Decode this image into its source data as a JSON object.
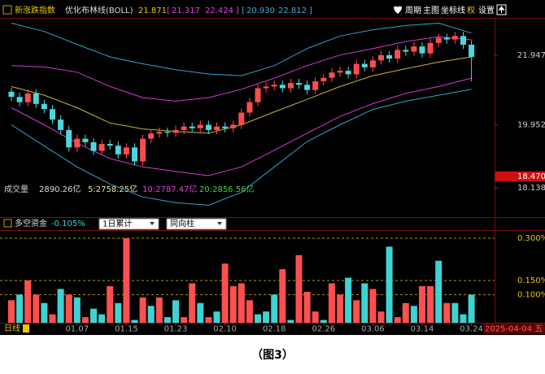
{
  "header": {
    "indicator": "新涨跌指数",
    "study": "优化布林线(BOLL)",
    "mid": "21.871",
    "inner_low": "21.317",
    "inner_high": "22.424",
    "outer_low": "20.930",
    "outer_high": "22.812",
    "menu": [
      "周期",
      "主图",
      "坐标线",
      "权",
      "设置"
    ]
  },
  "volume_row": {
    "label": "成交量",
    "total": "2890.26亿",
    "ma5": "5:2758.25亿",
    "ma10": "10:2787.47亿",
    "ma20": "20:2856.56亿"
  },
  "fund_panel": {
    "label": "多空资金",
    "value": "-0.105%",
    "select1": "1日累计",
    "select2": "同向柱"
  },
  "footer": {
    "period": "日线",
    "date": "2025-04-04 五"
  },
  "caption": "（图3）",
  "chart_data": [
    {
      "type": "candlestick",
      "open": [
        20.9,
        20.75,
        20.6,
        20.85,
        20.55,
        20.4,
        20.1,
        19.8,
        19.3,
        19.55,
        19.45,
        19.2,
        19.4,
        19.35,
        19.1,
        19.3,
        18.9,
        19.55,
        19.7,
        19.75,
        19.72,
        19.8,
        19.9,
        19.85,
        19.95,
        19.8,
        19.9,
        19.85,
        19.95,
        20.3,
        20.6,
        21.0,
        21.05,
        21.1,
        21.0,
        21.15,
        21.1,
        20.95,
        21.2,
        21.3,
        21.45,
        21.5,
        21.4,
        21.7,
        21.6,
        21.8,
        21.95,
        21.85,
        22.1,
        22.05,
        22.2,
        22.0,
        22.3,
        22.45,
        22.4,
        22.5,
        22.25
      ],
      "high": [
        21.02,
        20.87,
        20.97,
        20.97,
        20.67,
        20.52,
        20.22,
        19.92,
        19.67,
        19.67,
        19.57,
        19.52,
        19.52,
        19.47,
        19.42,
        19.42,
        19.67,
        19.82,
        19.87,
        19.87,
        19.92,
        20.02,
        20.02,
        20.07,
        20.07,
        20.02,
        20.02,
        20.07,
        20.42,
        20.72,
        21.12,
        21.17,
        21.22,
        21.22,
        21.27,
        21.27,
        21.22,
        21.32,
        21.42,
        21.57,
        21.62,
        21.62,
        21.82,
        21.82,
        21.92,
        22.07,
        22.07,
        22.22,
        22.22,
        22.32,
        22.32,
        22.42,
        22.57,
        22.57,
        22.62,
        22.62,
        22.37
      ],
      "low": [
        20.63,
        20.48,
        20.48,
        20.43,
        20.28,
        19.98,
        19.68,
        19.18,
        19.18,
        19.33,
        19.08,
        19.08,
        19.23,
        18.98,
        18.98,
        18.78,
        18.78,
        19.43,
        19.58,
        19.6,
        19.6,
        19.68,
        19.73,
        19.73,
        19.68,
        19.68,
        19.73,
        19.73,
        19.83,
        20.18,
        20.48,
        20.88,
        20.93,
        20.88,
        20.88,
        20.98,
        20.83,
        20.83,
        21.08,
        21.18,
        21.33,
        21.28,
        21.28,
        21.48,
        21.48,
        21.68,
        21.73,
        21.73,
        21.93,
        21.93,
        21.88,
        21.88,
        22.18,
        22.28,
        22.28,
        22.13,
        21.2
      ],
      "close": [
        20.75,
        20.6,
        20.85,
        20.55,
        20.4,
        20.1,
        19.8,
        19.3,
        19.55,
        19.45,
        19.2,
        19.4,
        19.35,
        19.1,
        19.3,
        18.9,
        19.55,
        19.7,
        19.75,
        19.72,
        19.8,
        19.9,
        19.85,
        19.95,
        19.8,
        19.9,
        19.85,
        19.95,
        20.3,
        20.6,
        21.0,
        21.05,
        21.1,
        21.0,
        21.15,
        21.1,
        20.95,
        21.2,
        21.3,
        21.45,
        21.5,
        21.4,
        21.7,
        21.6,
        21.8,
        21.95,
        21.85,
        22.1,
        22.05,
        22.2,
        22.0,
        22.3,
        22.45,
        22.4,
        22.5,
        22.25,
        21.9
      ],
      "up_color": "#ff4d4d",
      "down_color": "#4fd6dc",
      "ylim": [
        17.58,
        23.02
      ],
      "yticks": [
        21.947,
        19.952,
        18.138
      ],
      "marker": {
        "value": 18.47,
        "label": "18.470"
      },
      "xticks": [
        {
          "value": 8,
          "label": "01.07"
        },
        {
          "value": 14,
          "label": "01.15"
        },
        {
          "value": 20,
          "label": "01.23"
        },
        {
          "value": 26,
          "label": "02.10"
        },
        {
          "value": 32,
          "label": "02.18"
        },
        {
          "value": 38,
          "label": "02.26"
        },
        {
          "value": 44,
          "label": "03.06"
        },
        {
          "value": 50,
          "label": "03.14"
        },
        {
          "value": 56,
          "label": "03.24"
        }
      ],
      "band_x": [
        0,
        4,
        8,
        12,
        16,
        20,
        24,
        28,
        32,
        36,
        40,
        44,
        48,
        52,
        56
      ],
      "series": [
        {
          "color": "#2fa6c8",
          "values": [
            22.87,
            22.63,
            22.26,
            21.9,
            21.7,
            21.53,
            21.41,
            21.36,
            21.65,
            22.14,
            22.5,
            22.68,
            22.8,
            22.87,
            22.58
          ]
        },
        {
          "color": "#d23cd2",
          "values": [
            21.65,
            21.61,
            21.46,
            21.05,
            20.73,
            20.63,
            20.73,
            20.97,
            21.29,
            21.65,
            21.95,
            22.14,
            22.34,
            22.48,
            22.39
          ]
        },
        {
          "color": "#c8b432",
          "values": [
            21.05,
            20.8,
            20.44,
            20.0,
            19.83,
            19.76,
            19.71,
            19.95,
            20.32,
            20.68,
            21.05,
            21.36,
            21.56,
            21.75,
            21.9
          ]
        },
        {
          "color": "#d23cd2",
          "values": [
            20.44,
            19.95,
            19.42,
            18.98,
            18.74,
            18.61,
            18.49,
            18.74,
            19.22,
            19.71,
            20.19,
            20.56,
            20.85,
            21.05,
            21.29
          ]
        },
        {
          "color": "#2fa6c8",
          "values": [
            19.95,
            19.34,
            18.74,
            18.25,
            17.88,
            17.71,
            17.64,
            18.01,
            18.74,
            19.47,
            19.95,
            20.39,
            20.63,
            20.8,
            20.97
          ]
        }
      ]
    },
    {
      "type": "bar",
      "values": [
        0.08,
        0.1,
        0.15,
        0.1,
        0.07,
        0.03,
        0.12,
        0.1,
        0.09,
        0.02,
        0.05,
        0.03,
        0.13,
        0.07,
        0.3,
        0.01,
        0.09,
        0.06,
        0.09,
        0.02,
        0.08,
        0.02,
        0.14,
        0.07,
        0.02,
        0.04,
        0.21,
        0.13,
        0.14,
        0.08,
        0.03,
        0.04,
        0.1,
        0.19,
        0.01,
        0.24,
        0.11,
        0.04,
        0.01,
        0.14,
        0.1,
        0.16,
        0.08,
        0.14,
        0.12,
        0.04,
        0.27,
        0.02,
        0.07,
        0.06,
        0.13,
        0.13,
        0.22,
        0.07,
        0.07,
        0.03,
        0.1
      ],
      "colors": [
        "#ff5050",
        "#3fd2d2",
        "#ff5050",
        "#ff5050",
        "#3fd2d2",
        "#ff5050",
        "#3fd2d2",
        "#ff5050",
        "#3fd2d2",
        "#ff5050",
        "#3fd2d2",
        "#3fd2d2",
        "#ff5050",
        "#3fd2d2",
        "#ff5050",
        "#3fd2d2",
        "#ff5050",
        "#3fd2d2",
        "#ff5050",
        "#3fd2d2",
        "#3fd2d2",
        "#ff5050",
        "#ff5050",
        "#3fd2d2",
        "#ff5050",
        "#3fd2d2",
        "#ff5050",
        "#ff5050",
        "#ff5050",
        "#ff5050",
        "#3fd2d2",
        "#3fd2d2",
        "#3fd2d2",
        "#ff5050",
        "#3fd2d2",
        "#ff5050",
        "#ff5050",
        "#ff5050",
        "#3fd2d2",
        "#ff5050",
        "#ff5050",
        "#3fd2d2",
        "#ff5050",
        "#3fd2d2",
        "#ff5050",
        "#ff5050",
        "#3fd2d2",
        "#ff5050",
        "#ff5050",
        "#3fd2d2",
        "#ff5050",
        "#ff5050",
        "#3fd2d2",
        "#ff5050",
        "#3fd2d2",
        "#3fd2d2",
        "#3fd2d2"
      ],
      "ylim": [
        0,
        0.326
      ],
      "yticks": [
        {
          "value": 0.3,
          "label": "0.300%"
        },
        {
          "value": 0.15,
          "label": "0.150%"
        },
        {
          "value": 0.1,
          "label": "0.100%"
        }
      ],
      "grid": true
    }
  ]
}
